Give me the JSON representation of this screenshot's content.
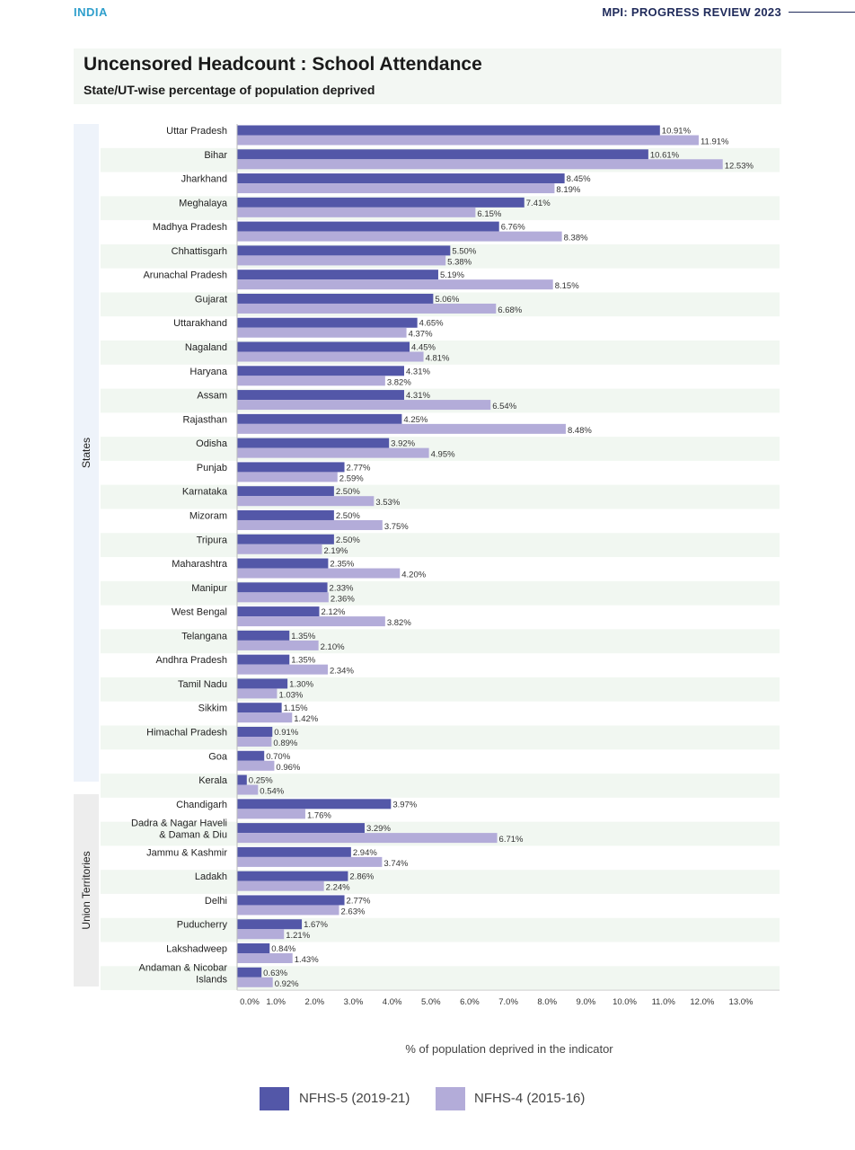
{
  "header": {
    "left": "INDIA",
    "right": "MPI: PROGRESS REVIEW 2023"
  },
  "title": "Uncensored Headcount : School Attendance",
  "subtitle": "State/UT-wise percentage of population deprived",
  "groups": {
    "states": "States",
    "uts": "Union Territories"
  },
  "legend": {
    "nfhs5": "NFHS-5 (2019-21)",
    "nfhs4": "NFHS-4 (2015-16)"
  },
  "colors": {
    "nfhs5": "#5357a8",
    "nfhs4": "#b3acd9",
    "stripe": "#f1f7f1"
  },
  "chart_data": {
    "type": "bar",
    "orientation": "horizontal",
    "xlabel": "% of population deprived in the indicator",
    "ylabel": "",
    "xlim": [
      0,
      13
    ],
    "xticks": [
      "0.0%",
      "1.0%",
      "2.0%",
      "3.0%",
      "4.0%",
      "5.0%",
      "6.0%",
      "7.0%",
      "8.0%",
      "9.0%",
      "10.0%",
      "11.0%",
      "12.0%",
      "13.0%"
    ],
    "categories": [
      "Uttar Pradesh",
      "Bihar",
      "Jharkhand",
      "Meghalaya",
      "Madhya Pradesh",
      "Chhattisgarh",
      "Arunachal Pradesh",
      "Gujarat",
      "Uttarakhand",
      "Nagaland",
      "Haryana",
      "Assam",
      "Rajasthan",
      "Odisha",
      "Punjab",
      "Karnataka",
      "Mizoram",
      "Tripura",
      "Maharashtra",
      "Manipur",
      "West Bengal",
      "Telangana",
      "Andhra Pradesh",
      "Tamil Nadu",
      "Sikkim",
      "Himachal Pradesh",
      "Goa",
      "Kerala",
      "Chandigarh",
      "Dadra & Nagar Haveli\n& Daman & Diu",
      "Jammu & Kashmir",
      "Ladakh",
      "Delhi",
      "Puducherry",
      "Lakshadweep",
      "Andaman & Nicobar\nIslands"
    ],
    "series": [
      {
        "name": "NFHS-5 (2019-21)",
        "values": [
          10.91,
          10.61,
          8.45,
          7.41,
          6.76,
          5.5,
          5.19,
          5.06,
          4.65,
          4.45,
          4.31,
          4.31,
          4.25,
          3.92,
          2.77,
          2.5,
          2.5,
          2.5,
          2.35,
          2.33,
          2.12,
          1.35,
          1.35,
          1.3,
          1.15,
          0.91,
          0.7,
          0.25,
          3.97,
          3.29,
          2.94,
          2.86,
          2.77,
          1.67,
          0.84,
          0.63
        ]
      },
      {
        "name": "NFHS-4 (2015-16)",
        "values": [
          11.91,
          12.53,
          8.19,
          6.15,
          8.38,
          5.38,
          8.15,
          6.68,
          4.37,
          4.81,
          3.82,
          6.54,
          8.48,
          4.95,
          2.59,
          3.53,
          3.75,
          2.19,
          4.2,
          2.36,
          3.82,
          2.1,
          2.34,
          1.03,
          1.42,
          0.89,
          0.96,
          0.54,
          1.76,
          6.71,
          3.74,
          2.24,
          2.63,
          1.21,
          1.43,
          0.92
        ]
      }
    ],
    "group_sizes": {
      "States": 28,
      "Union Territories": 8
    },
    "legend_position": "bottom",
    "grid": false
  }
}
